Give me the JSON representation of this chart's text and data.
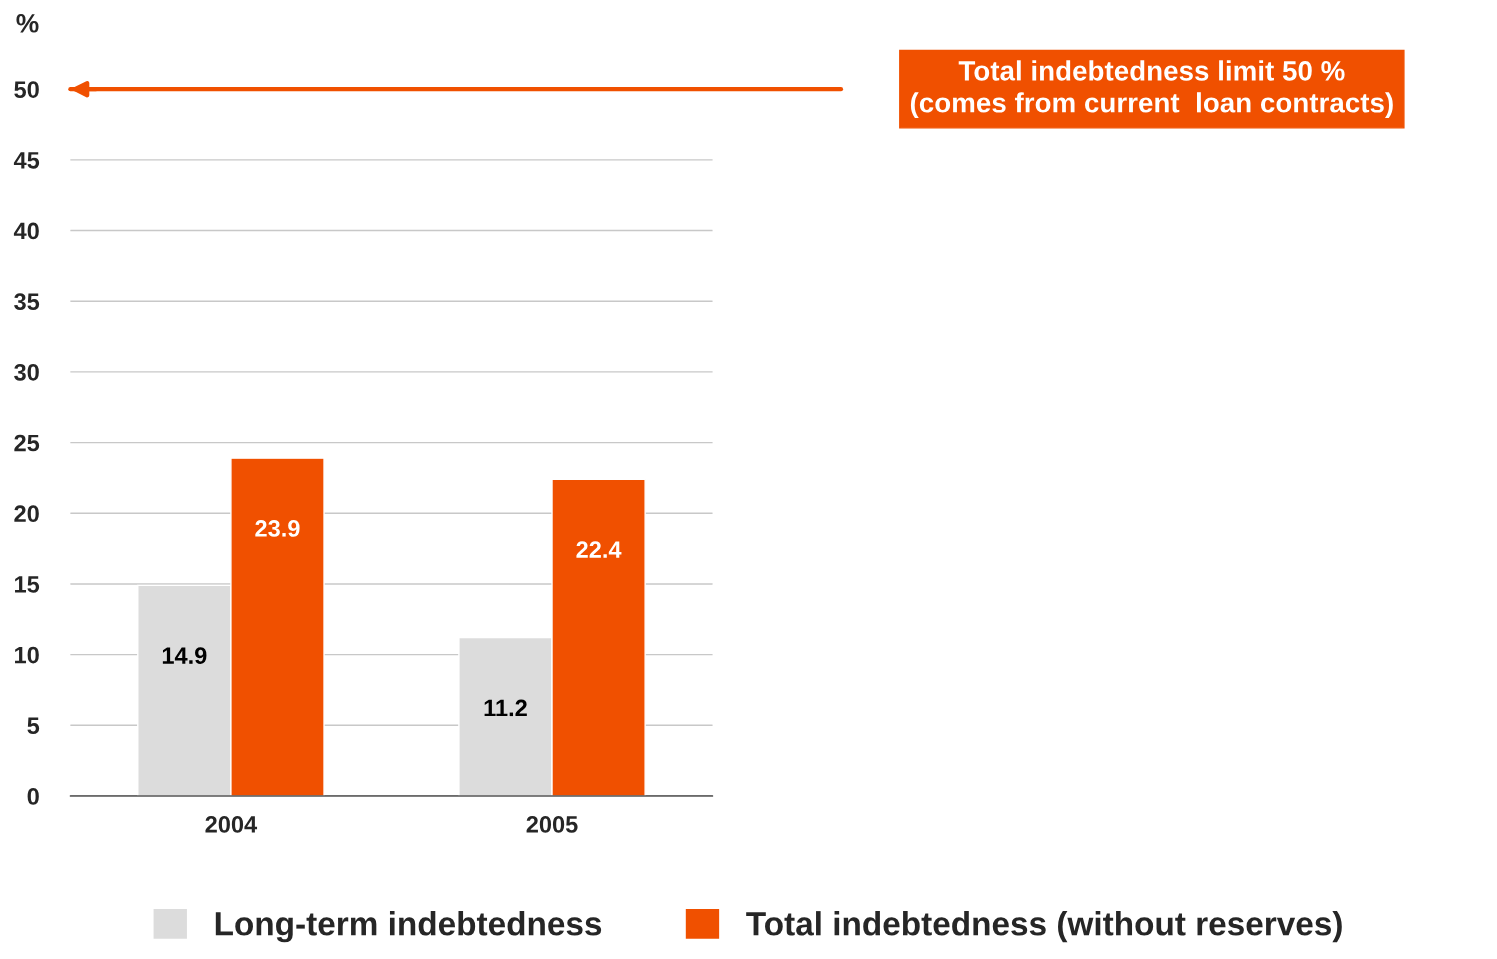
{
  "chart_data": {
    "type": "bar",
    "ylabel": "%",
    "categories": [
      "2004",
      "2005"
    ],
    "series": [
      {
        "name": "Long-term indebtedness",
        "color": "#dcdcdc",
        "values": [
          14.9,
          11.2
        ]
      },
      {
        "name": "Total indebtedness (without reserves)",
        "color": "#f05000",
        "values": [
          23.9,
          22.4
        ]
      }
    ],
    "ylim": [
      0,
      50
    ],
    "yticks": [
      0,
      5,
      10,
      15,
      20,
      25,
      30,
      35,
      40,
      45,
      50
    ],
    "grid": "y",
    "legend": "bottom",
    "data_labels": true,
    "ref_lines": [
      {
        "axis": "y",
        "value": 50,
        "label": "Total indebtedness limit 50 %\n(comes from current  loan contracts)",
        "color": "#f05000"
      }
    ]
  }
}
